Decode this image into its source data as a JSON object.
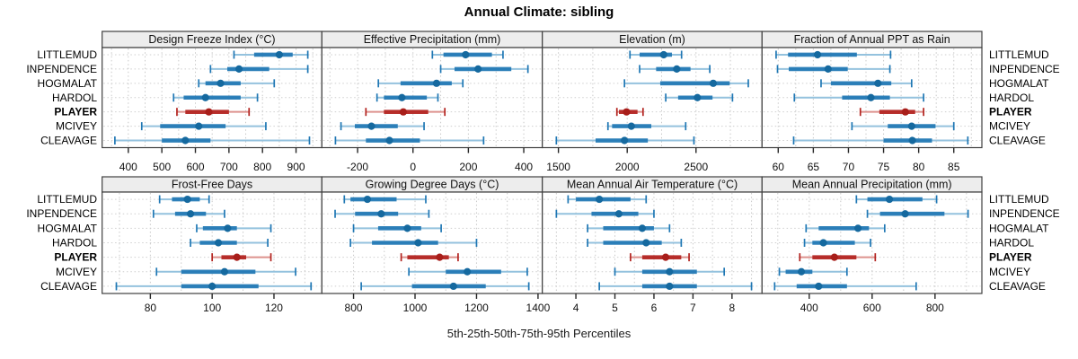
{
  "title": "Annual Climate: sibling",
  "caption": "5th-25th-50th-75th-95th Percentiles",
  "sites": [
    "LITTLEMUD",
    "INPENDENCE",
    "HOGMALAT",
    "HARDOL",
    "PLAYER",
    "MCIVEY",
    "CLEAVAGE"
  ],
  "highlight_site": "PLAYER",
  "colors": {
    "series_blue": "#1f77b4",
    "series_blue_light": "#94c2de",
    "series_blue_dot": "#15699f",
    "series_red": "#b2221e",
    "series_red_light": "#dd928e",
    "series_red_dot": "#a81e1a",
    "grid": "#c9c9c9",
    "row_line": "#cfcfcf",
    "panel_border": "#3f3f3f",
    "strip_bg": "#ededed",
    "tick": "#262626",
    "text": "#000000"
  },
  "chart_data": {
    "type": "dotplot-intervals",
    "title": "Annual Climate: sibling",
    "xlabel": "5th-25th-50th-75th-95th Percentiles",
    "grid": "dotted",
    "percentiles": [
      5,
      25,
      50,
      75,
      95
    ],
    "layout": "2 rows x 4 cols lattice, site labels on both sides, PLAYER highlighted red",
    "panels": [
      {
        "title": "Design Freeze Index (°C)",
        "xlim": [
          322,
          977
        ],
        "ticks": [
          400,
          500,
          600,
          700,
          800,
          900
        ],
        "values": [
          [
            715,
            775,
            850,
            890,
            935
          ],
          [
            645,
            695,
            730,
            820,
            935
          ],
          [
            610,
            630,
            675,
            735,
            835
          ],
          [
            535,
            565,
            630,
            735,
            785
          ],
          [
            545,
            570,
            640,
            700,
            760
          ],
          [
            440,
            495,
            610,
            690,
            810
          ],
          [
            360,
            500,
            570,
            645,
            940
          ]
        ]
      },
      {
        "title": "Effective Precipitation (mm)",
        "xlim": [
          -329,
          467
        ],
        "ticks": [
          -200,
          0,
          200,
          400
        ],
        "values": [
          [
            70,
            110,
            190,
            285,
            325
          ],
          [
            100,
            150,
            235,
            355,
            415
          ],
          [
            -125,
            -45,
            85,
            140,
            180
          ],
          [
            -130,
            -105,
            -40,
            50,
            90
          ],
          [
            -170,
            -105,
            -35,
            55,
            115
          ],
          [
            -260,
            -210,
            -150,
            -55,
            40
          ],
          [
            -280,
            -170,
            -85,
            25,
            255
          ]
        ]
      },
      {
        "title": "Elevation (m)",
        "xlim": [
          1383,
          2980
        ],
        "ticks": [
          1500,
          2000,
          2500
        ],
        "values": [
          [
            2020,
            2090,
            2265,
            2325,
            2395
          ],
          [
            2090,
            2210,
            2360,
            2460,
            2600
          ],
          [
            1980,
            2240,
            2625,
            2745,
            2880
          ],
          [
            2280,
            2370,
            2510,
            2620,
            2765
          ],
          [
            1925,
            1940,
            1995,
            2075,
            2115
          ],
          [
            1860,
            1890,
            2030,
            2175,
            2425
          ],
          [
            1485,
            1770,
            1980,
            2150,
            2485
          ]
        ]
      },
      {
        "title": "Fraction of Annual PPT as Rain",
        "xlim": [
          57.7,
          89.0
        ],
        "ticks": [
          60,
          65,
          70,
          75,
          80,
          85
        ],
        "values": [
          [
            59.7,
            61.4,
            65.6,
            71.2,
            76.0
          ],
          [
            59.9,
            61.5,
            67.1,
            69.9,
            75.9
          ],
          [
            66.1,
            67.5,
            74.2,
            76.1,
            79.0
          ],
          [
            62.3,
            69.1,
            73.2,
            75.9,
            80.7
          ],
          [
            71.7,
            74.4,
            78.1,
            79.5,
            80.7
          ],
          [
            70.5,
            75.6,
            79.0,
            82.4,
            85.0
          ],
          [
            62.2,
            75.0,
            79.1,
            81.9,
            87.0
          ]
        ]
      },
      {
        "title": "Frost-Free Days",
        "xlim": [
          64.4,
          135.5
        ],
        "ticks": [
          80,
          100,
          120
        ],
        "values": [
          [
            83,
            87,
            92,
            96,
            99
          ],
          [
            81,
            88,
            93,
            98,
            104
          ],
          [
            95,
            97,
            105,
            108,
            119
          ],
          [
            93,
            96,
            102,
            108,
            118
          ],
          [
            100,
            103,
            108,
            111,
            119
          ],
          [
            82,
            90,
            104,
            114,
            127
          ],
          [
            69,
            90,
            100,
            115,
            132
          ]
        ]
      },
      {
        "title": "Growing Degree Days (°C)",
        "xlim": [
          697,
          1414
        ],
        "ticks": [
          800,
          1000,
          1200,
          1400
        ],
        "values": [
          [
            770,
            790,
            845,
            940,
            1035
          ],
          [
            740,
            805,
            890,
            945,
            1045
          ],
          [
            800,
            880,
            975,
            1020,
            1085
          ],
          [
            790,
            860,
            1010,
            1075,
            1200
          ],
          [
            955,
            975,
            1080,
            1110,
            1140
          ],
          [
            980,
            1100,
            1170,
            1280,
            1365
          ],
          [
            825,
            990,
            1125,
            1230,
            1370
          ]
        ]
      },
      {
        "title": "Mean Annual Air Temperature (°C)",
        "xlim": [
          3.14,
          8.77
        ],
        "ticks": [
          4,
          5,
          6,
          7,
          8
        ],
        "values": [
          [
            3.8,
            4.0,
            4.6,
            5.4,
            5.8
          ],
          [
            3.5,
            4.4,
            5.1,
            5.6,
            6.0
          ],
          [
            4.3,
            4.7,
            5.7,
            6.0,
            6.4
          ],
          [
            4.3,
            4.7,
            5.8,
            6.2,
            6.7
          ],
          [
            5.4,
            5.7,
            6.3,
            6.7,
            6.9
          ],
          [
            5.0,
            5.7,
            6.4,
            7.1,
            7.8
          ],
          [
            4.6,
            5.7,
            6.4,
            7.1,
            8.5
          ]
        ]
      },
      {
        "title": "Mean Annual Precipitation (mm)",
        "xlim": [
          250,
          949
        ],
        "ticks": [
          400,
          600,
          800
        ],
        "values": [
          [
            550,
            585,
            655,
            760,
            805
          ],
          [
            585,
            625,
            705,
            830,
            905
          ],
          [
            390,
            430,
            555,
            590,
            640
          ],
          [
            385,
            410,
            445,
            545,
            595
          ],
          [
            370,
            410,
            480,
            550,
            610
          ],
          [
            305,
            325,
            375,
            410,
            520
          ],
          [
            290,
            360,
            430,
            520,
            740
          ]
        ]
      }
    ]
  }
}
